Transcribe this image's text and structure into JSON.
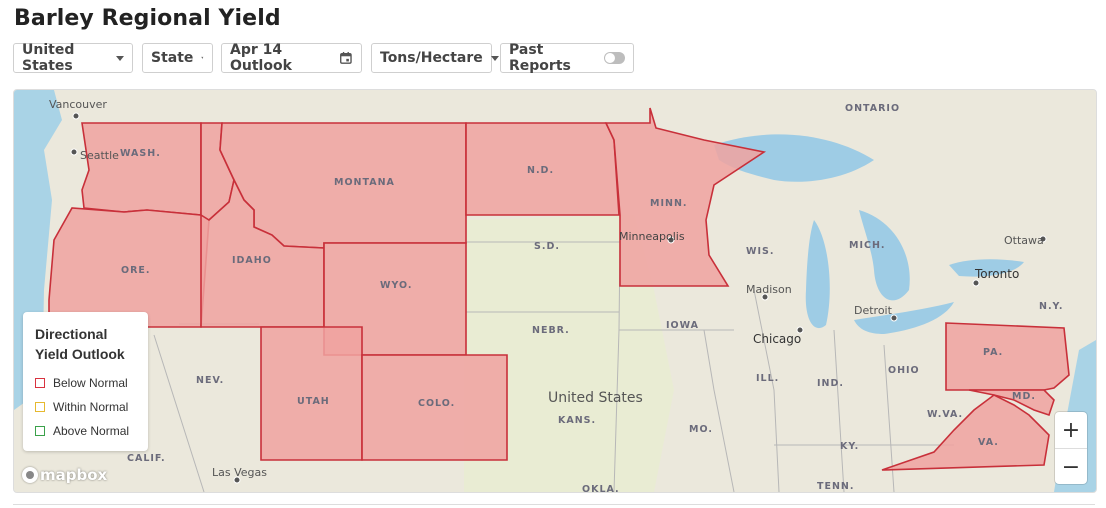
{
  "title": "Barley Regional Yield",
  "toolbar": {
    "country": "United States",
    "level": "State",
    "date": "Apr 14 Outlook",
    "units": "Tons/Hectare",
    "past_reports": "Past Reports"
  },
  "legend": {
    "title": "Directional Yield Outlook",
    "items": [
      {
        "label": "Below Normal",
        "color": "#d9323f"
      },
      {
        "label": "Within Normal",
        "color": "#e6b92f"
      },
      {
        "label": "Above Normal",
        "color": "#3aa14a"
      }
    ]
  },
  "map": {
    "attribution": "mapbox",
    "highlight_fill": "#f0a2a0",
    "highlight_stroke": "#c8303a",
    "state_labels": [
      "WASH.",
      "MONTANA",
      "N.D.",
      "MINN.",
      "ORE.",
      "IDAHO",
      "WYO.",
      "UTAH",
      "COLO.",
      "PA.",
      "MD.",
      "VA.",
      "S.D.",
      "NEBR.",
      "IOWA",
      "WIS.",
      "MICH.",
      "ILL.",
      "IND.",
      "OHIO",
      "W.VA.",
      "KY.",
      "TENN.",
      "KANS.",
      "MO.",
      "NEV.",
      "CALIF.",
      "OKLA.",
      "N.Y."
    ],
    "region_labels": [
      "ONTARIO"
    ],
    "city_labels": [
      "Vancouver",
      "Seattle",
      "Minneapolis",
      "Madison",
      "Chicago",
      "Detroit",
      "Toronto",
      "Ottawa",
      "Las Vegas"
    ],
    "country_label": "United States"
  },
  "zoom": {
    "in": "+",
    "out": "−"
  }
}
